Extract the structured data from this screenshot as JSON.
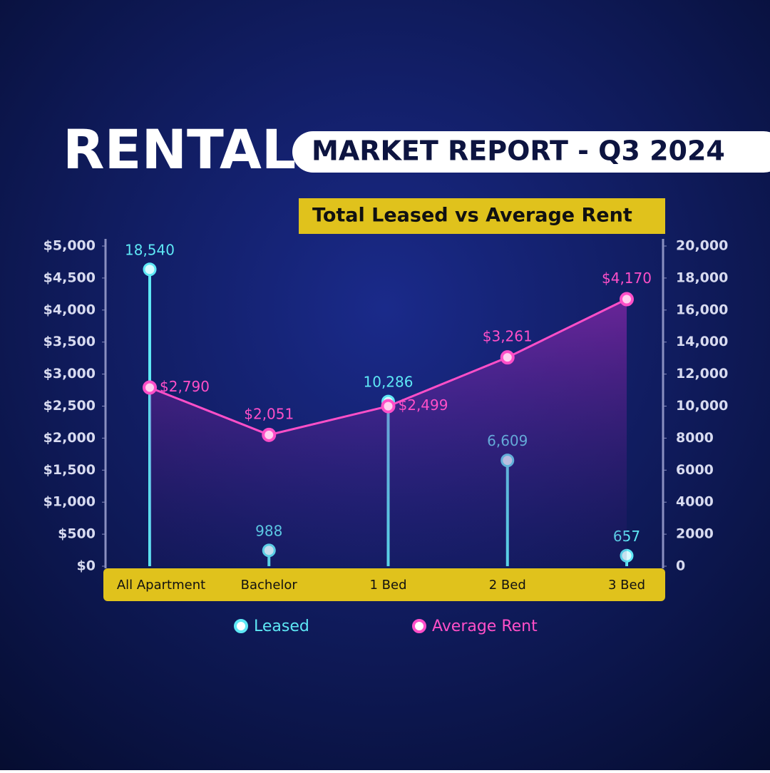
{
  "header": {
    "title": "RENTAL",
    "subtitle": "MARKET REPORT - Q3 2024"
  },
  "chart_data": {
    "type": "combo",
    "title": "Total Leased vs Average Rent",
    "categories": [
      "All Apartment",
      "Bachelor",
      "1 Bed",
      "2 Bed",
      "3 Bed"
    ],
    "series": [
      {
        "name": "Leased",
        "type": "lollipop",
        "axis": "y2",
        "color": "#5ee8f5",
        "values": [
          18540,
          988,
          10286,
          6609,
          657
        ],
        "value_labels": [
          "18,540",
          "988",
          "10,286",
          "6,609",
          "657"
        ]
      },
      {
        "name": "Average Rent",
        "type": "line",
        "color": "#ff4fc8",
        "values": [
          2790,
          2051,
          2499,
          3261,
          4170
        ],
        "value_labels": [
          "$2,790",
          "$2,051",
          "$2,499",
          "$3,261",
          "$4,170"
        ]
      }
    ],
    "ylim": [
      0,
      5000
    ],
    "yticks": [
      {
        "value": 0,
        "label": "$0"
      },
      {
        "value": 500,
        "label": "$500"
      },
      {
        "value": 1000,
        "label": "$1,000"
      },
      {
        "value": 1500,
        "label": "$1,500"
      },
      {
        "value": 2000,
        "label": "$2,000"
      },
      {
        "value": 2500,
        "label": "$2,500"
      },
      {
        "value": 3000,
        "label": "$3,000"
      },
      {
        "value": 3500,
        "label": "$3,500"
      },
      {
        "value": 4000,
        "label": "$4,000"
      },
      {
        "value": 4500,
        "label": "$4,500"
      },
      {
        "value": 5000,
        "label": "$5,000"
      }
    ],
    "y2lim": [
      0,
      20000
    ],
    "y2ticks": [
      0,
      2000,
      4000,
      6000,
      8000,
      {
        "value": 10000,
        "label": "10,000"
      },
      {
        "value": 12000,
        "label": "12,000"
      },
      {
        "value": 14000,
        "label": "14,000"
      },
      {
        "value": 16000,
        "label": "16,000"
      },
      {
        "value": 18000,
        "label": "18,000"
      },
      {
        "value": 20000,
        "label": "20,000"
      }
    ],
    "grid": false,
    "legend": "bottom"
  }
}
